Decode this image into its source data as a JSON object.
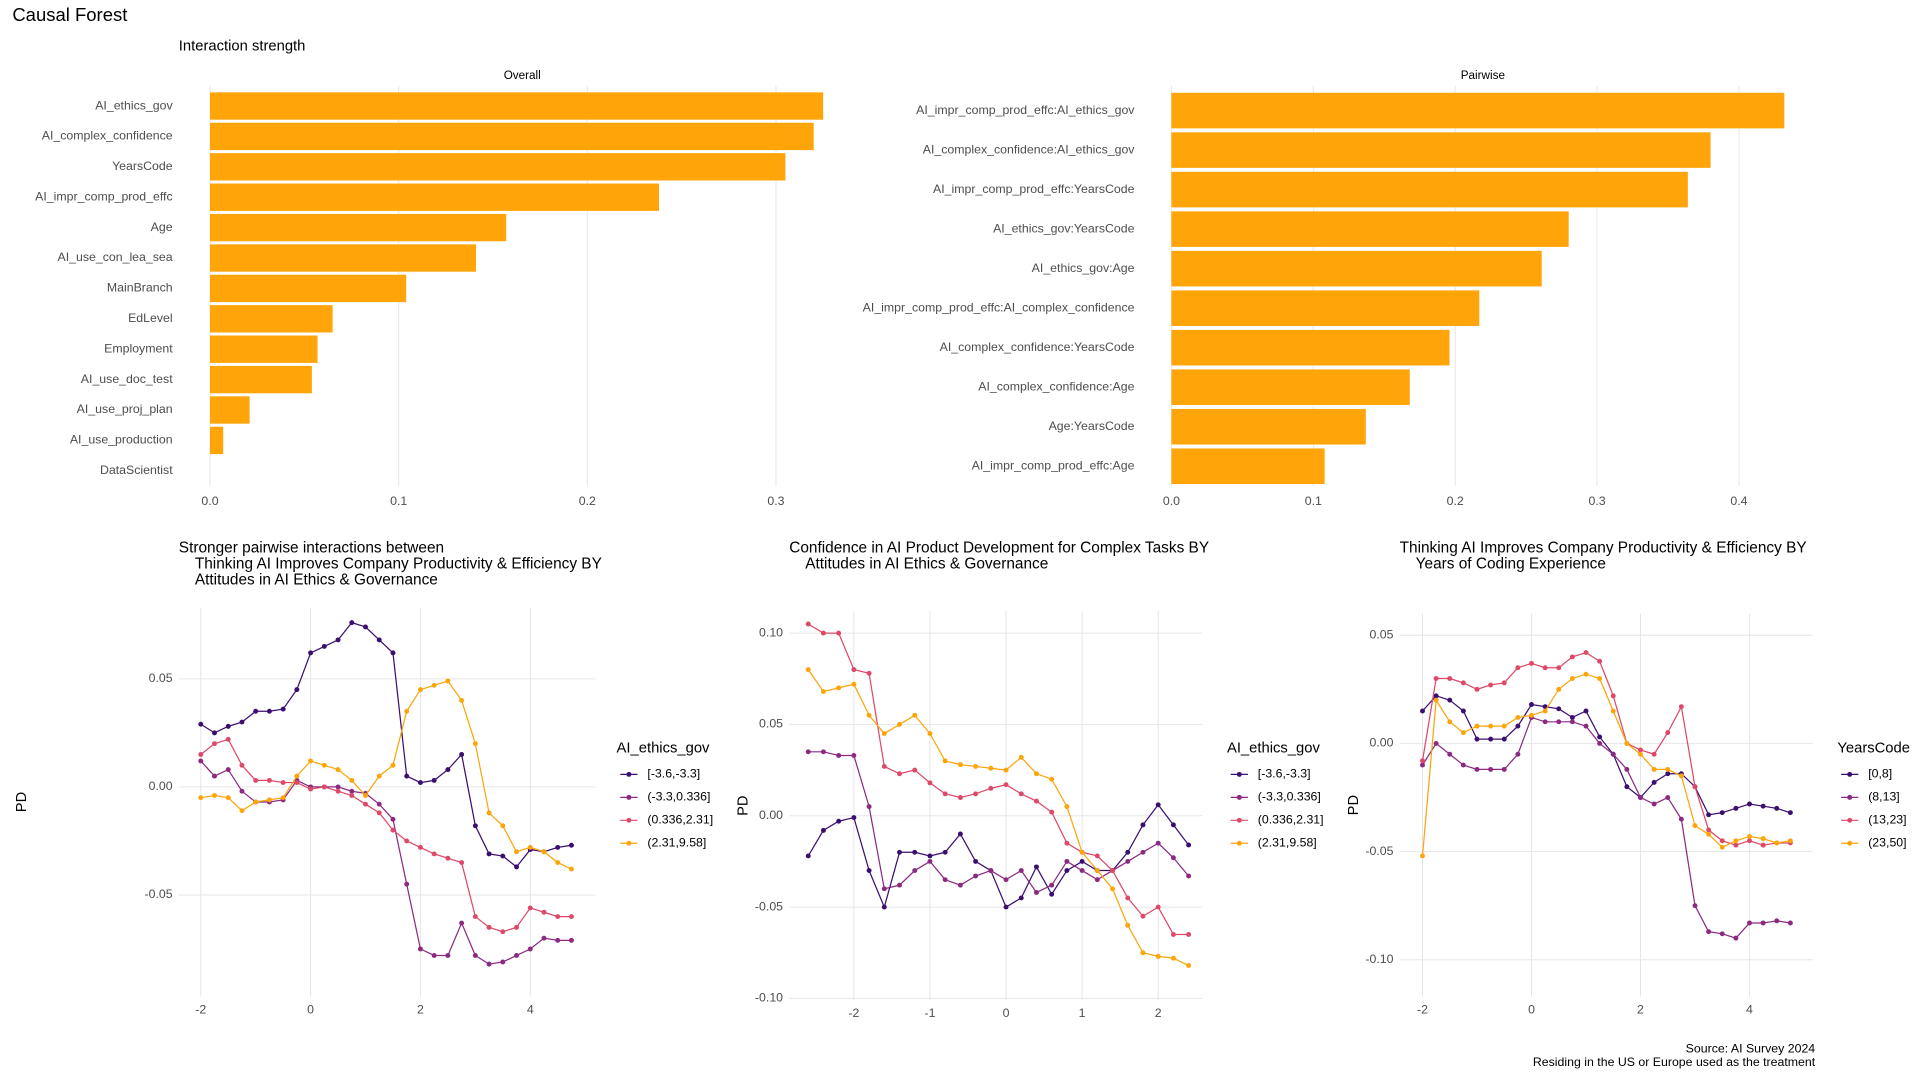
{
  "page_title": "Causal Forest",
  "caption": [
    "Source: AI Survey 2024",
    "Residing in the US or Europe used as the treatment"
  ],
  "chart_data": [
    {
      "type": "bar",
      "orientation": "horizontal",
      "subtitle": "Interaction strength",
      "title": "Overall",
      "color": "#ffa50a",
      "grid": true,
      "categories": [
        "AI_ethics_gov",
        "AI_complex_confidence",
        "YearsCode",
        "AI_impr_comp_prod_effc",
        "Age",
        "AI_use_con_lea_sea",
        "MainBranch",
        "EdLevel",
        "Employment",
        "AI_use_doc_test",
        "AI_use_proj_plan",
        "AI_use_production",
        "DataScientist"
      ],
      "values": [
        0.325,
        0.32,
        0.305,
        0.238,
        0.157,
        0.141,
        0.104,
        0.065,
        0.057,
        0.054,
        0.021,
        0.007,
        0
      ],
      "xlim": [
        -0.01,
        0.341
      ],
      "xticks": [
        {
          "value": 0,
          "label": "0.0"
        },
        0.1,
        0.2,
        0.3
      ]
    },
    {
      "type": "bar",
      "orientation": "horizontal",
      "title": "Pairwise",
      "color": "#ffa50a",
      "grid": true,
      "categories": [
        "AI_impr_comp_prod_effc:AI_ethics_gov",
        "AI_complex_confidence:AI_ethics_gov",
        "AI_impr_comp_prod_effc:YearsCode",
        "AI_ethics_gov:YearsCode",
        "AI_ethics_gov:Age",
        "AI_impr_comp_prod_effc:AI_complex_confidence",
        "AI_complex_confidence:YearsCode",
        "AI_complex_confidence:Age",
        "Age:YearsCode",
        "AI_impr_comp_prod_effc:Age"
      ],
      "values": [
        0.432,
        0.38,
        0.364,
        0.28,
        0.261,
        0.217,
        0.196,
        0.168,
        0.137,
        0.108
      ],
      "xlim": [
        -0.013,
        0.452
      ],
      "xticks": [
        {
          "value": 0,
          "label": "0.0"
        },
        0.1,
        0.2,
        0.3,
        0.4
      ]
    },
    {
      "type": "line",
      "markers": true,
      "grid": true,
      "title": [
        "Stronger pairwise interactions between",
        "Thinking AI Improves Company Productivity & Efficiency BY",
        "Attitudes in AI Ethics & Governance"
      ],
      "ylabel": "PD",
      "legend_title": "AI_ethics_gov",
      "x": [
        -2,
        -1.75,
        -1.5,
        -1.25,
        -1,
        -0.75,
        -0.5,
        -0.25,
        0,
        0.25,
        0.5,
        0.75,
        1,
        1.25,
        1.5,
        1.75,
        2,
        2.25,
        2.5,
        2.75,
        3,
        3.25,
        3.5,
        3.75,
        4,
        4.25,
        4.5,
        4.75
      ],
      "series": [
        {
          "name": "[-3.6,-3.3]",
          "color": "#3b0f70",
          "values": [
            0.029,
            0.025,
            0.028,
            0.03,
            0.035,
            0.035,
            0.036,
            0.045,
            0.062,
            0.065,
            0.068,
            0.076,
            0.074,
            0.068,
            0.062,
            0.005,
            0.002,
            0.003,
            0.008,
            0.015,
            -0.018,
            -0.031,
            -0.032,
            -0.037,
            -0.029,
            -0.03,
            -0.028,
            -0.027
          ]
        },
        {
          "name": "(-3.3,0.336]",
          "color": "#8c2981",
          "values": [
            0.012,
            0.005,
            0.008,
            -0.002,
            -0.007,
            -0.007,
            -0.006,
            0.003,
            0,
            0,
            0,
            -0.002,
            -0.003,
            -0.008,
            -0.015,
            -0.045,
            -0.075,
            -0.078,
            -0.078,
            -0.063,
            -0.078,
            -0.082,
            -0.081,
            -0.078,
            -0.075,
            -0.07,
            -0.071,
            -0.071
          ]
        },
        {
          "name": "(0.336,2.31]",
          "color": "#de4968",
          "values": [
            0.015,
            0.02,
            0.022,
            0.01,
            0.003,
            0.003,
            0.002,
            0.002,
            -0.001,
            0,
            -0.002,
            -0.004,
            -0.008,
            -0.012,
            -0.02,
            -0.025,
            -0.028,
            -0.031,
            -0.033,
            -0.035,
            -0.06,
            -0.065,
            -0.067,
            -0.065,
            -0.056,
            -0.058,
            -0.06,
            -0.06
          ]
        },
        {
          "name": "(2.31,9.58]",
          "color": "#fca50a",
          "values": [
            -0.005,
            -0.004,
            -0.005,
            -0.011,
            -0.007,
            -0.006,
            -0.005,
            0.005,
            0.012,
            0.01,
            0.008,
            0.003,
            -0.004,
            0.005,
            0.01,
            0.035,
            0.045,
            0.047,
            0.049,
            0.04,
            0.02,
            -0.012,
            -0.018,
            -0.03,
            -0.028,
            -0.03,
            -0.035,
            -0.038
          ]
        }
      ],
      "xlim": [
        -2.4,
        5.19
      ],
      "ylim": [
        -0.097,
        0.083
      ],
      "xticks": [
        -2,
        0,
        2,
        4
      ],
      "yticks": [
        -0.05,
        {
          "value": 0,
          "label": "0.00"
        },
        0.05
      ]
    },
    {
      "type": "line",
      "markers": true,
      "grid": true,
      "title": [
        "Confidence in AI Product Development for Complex Tasks BY",
        "Attitudes in AI Ethics & Governance"
      ],
      "ylabel": "PD",
      "legend_title": "AI_ethics_gov",
      "x": [
        -2.6,
        -2.4,
        -2.2,
        -2,
        -1.8,
        -1.6,
        -1.4,
        -1.2,
        -1,
        -0.8,
        -0.6,
        -0.4,
        -0.2,
        0,
        0.2,
        0.4,
        0.6,
        0.8,
        1,
        1.2,
        1.4,
        1.6,
        1.8,
        2,
        2.2,
        2.4
      ],
      "series": [
        {
          "name": "[-3.6,-3.3]",
          "color": "#3b0f70",
          "values": [
            -0.022,
            -0.008,
            -0.003,
            -0.001,
            -0.03,
            -0.05,
            -0.02,
            -0.02,
            -0.022,
            -0.02,
            -0.01,
            -0.025,
            -0.03,
            -0.05,
            -0.045,
            -0.028,
            -0.043,
            -0.03,
            -0.025,
            -0.03,
            -0.03,
            -0.02,
            -0.005,
            0.006,
            -0.005,
            -0.016
          ]
        },
        {
          "name": "(-3.3,0.336]",
          "color": "#8c2981",
          "values": [
            0.035,
            0.035,
            0.033,
            0.033,
            0.005,
            -0.04,
            -0.038,
            -0.03,
            -0.025,
            -0.035,
            -0.038,
            -0.033,
            -0.03,
            -0.035,
            -0.03,
            -0.042,
            -0.038,
            -0.025,
            -0.03,
            -0.035,
            -0.03,
            -0.025,
            -0.02,
            -0.015,
            -0.023,
            -0.033
          ]
        },
        {
          "name": "(0.336,2.31]",
          "color": "#de4968",
          "values": [
            0.105,
            0.1,
            0.1,
            0.08,
            0.078,
            0.027,
            0.023,
            0.025,
            0.018,
            0.012,
            0.01,
            0.012,
            0.015,
            0.017,
            0.012,
            0.008,
            0.002,
            -0.015,
            -0.02,
            -0.022,
            -0.03,
            -0.045,
            -0.055,
            -0.05,
            -0.065,
            -0.065
          ]
        },
        {
          "name": "(2.31,9.58]",
          "color": "#fca50a",
          "values": [
            0.08,
            0.068,
            0.07,
            0.072,
            0.055,
            0.045,
            0.05,
            0.055,
            0.045,
            0.03,
            0.028,
            0.027,
            0.026,
            0.025,
            0.032,
            0.023,
            0.02,
            0.005,
            -0.02,
            -0.03,
            -0.04,
            -0.06,
            -0.075,
            -0.077,
            -0.078,
            -0.082
          ]
        }
      ],
      "xlim": [
        -2.85,
        2.58
      ],
      "ylim": [
        -0.101,
        0.112
      ],
      "xticks": [
        -2,
        -1,
        0,
        1,
        2
      ],
      "yticks": [
        {
          "value": -0.1,
          "label": "-0.10"
        },
        -0.05,
        {
          "value": 0,
          "label": "0.00"
        },
        0.05,
        {
          "value": 0.1,
          "label": "0.10"
        }
      ]
    },
    {
      "type": "line",
      "markers": true,
      "grid": true,
      "title": [
        "Thinking AI Improves Company Productivity & Efficiency BY",
        "Years of Coding Experience"
      ],
      "ylabel": "PD",
      "legend_title": "YearsCode",
      "x": [
        -2,
        -1.75,
        -1.5,
        -1.25,
        -1,
        -0.75,
        -0.5,
        -0.25,
        0,
        0.25,
        0.5,
        0.75,
        1,
        1.25,
        1.5,
        1.75,
        2,
        2.25,
        2.5,
        2.75,
        3,
        3.25,
        3.5,
        3.75,
        4,
        4.25,
        4.5,
        4.75
      ],
      "series": [
        {
          "name": "[0,8]",
          "color": "#3b0f70",
          "values": [
            0.015,
            0.022,
            0.02,
            0.015,
            0.002,
            0.002,
            0.002,
            0.008,
            0.018,
            0.017,
            0.016,
            0.012,
            0.015,
            0.003,
            -0.005,
            -0.02,
            -0.025,
            -0.018,
            -0.014,
            -0.014,
            -0.02,
            -0.033,
            -0.032,
            -0.03,
            -0.028,
            -0.029,
            -0.03,
            -0.032
          ]
        },
        {
          "name": "(8,13]",
          "color": "#8c2981",
          "values": [
            -0.01,
            0,
            -0.005,
            -0.01,
            -0.012,
            -0.012,
            -0.012,
            -0.005,
            0.012,
            0.01,
            0.01,
            0.01,
            0.008,
            0,
            -0.005,
            -0.012,
            -0.025,
            -0.028,
            -0.025,
            -0.035,
            -0.075,
            -0.087,
            -0.088,
            -0.09,
            -0.083,
            -0.083,
            -0.082,
            -0.083
          ]
        },
        {
          "name": "(13,23]",
          "color": "#de4968",
          "values": [
            -0.008,
            0.03,
            0.03,
            0.028,
            0.025,
            0.027,
            0.028,
            0.035,
            0.037,
            0.035,
            0.035,
            0.04,
            0.042,
            0.038,
            0.022,
            0,
            -0.003,
            -0.005,
            0.005,
            0.017,
            -0.02,
            -0.04,
            -0.045,
            -0.047,
            -0.045,
            -0.047,
            -0.046,
            -0.046
          ]
        },
        {
          "name": "(23,50]",
          "color": "#fca50a",
          "values": [
            -0.052,
            0.02,
            0.01,
            0.005,
            0.008,
            0.008,
            0.008,
            0.012,
            0.013,
            0.015,
            0.025,
            0.03,
            0.032,
            0.03,
            0.015,
            0,
            -0.005,
            -0.012,
            -0.012,
            -0.015,
            -0.038,
            -0.042,
            -0.048,
            -0.045,
            -0.043,
            -0.044,
            -0.046,
            -0.045
          ]
        }
      ],
      "xlim": [
        -2.42,
        5.16
      ],
      "ylim": [
        -0.117,
        0.06
      ],
      "xticks": [
        -2,
        0,
        2,
        4
      ],
      "yticks": [
        {
          "value": -0.1,
          "label": "-0.10"
        },
        -0.05,
        {
          "value": 0,
          "label": "0.00"
        },
        0.05
      ]
    }
  ]
}
